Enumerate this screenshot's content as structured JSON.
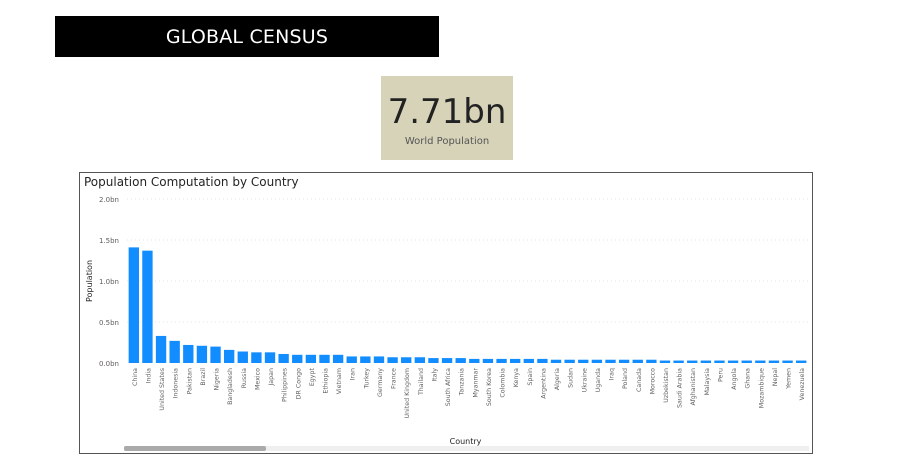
{
  "header": {
    "title": "GLOBAL CENSUS"
  },
  "kpi": {
    "value": "7.71bn",
    "label": "World Population"
  },
  "chart_data": {
    "type": "bar",
    "title": "Population Computation by Country",
    "xlabel": "Country",
    "ylabel": "Population",
    "ylim": [
      0,
      2.0
    ],
    "yticks": [
      "0.0bn",
      "0.5bn",
      "1.0bn",
      "1.5bn",
      "2.0bn"
    ],
    "grid": true,
    "bar_color": "#118dff",
    "categories": [
      "China",
      "India",
      "United States",
      "Indonesia",
      "Pakistan",
      "Brazil",
      "Nigeria",
      "Bangladesh",
      "Russia",
      "Mexico",
      "Japan",
      "Philippines",
      "DR Congo",
      "Egypt",
      "Ethiopia",
      "Vietnam",
      "Iran",
      "Turkey",
      "Germany",
      "France",
      "United Kingdom",
      "Thailand",
      "Italy",
      "South Africa",
      "Tanzania",
      "Myanmar",
      "South Korea",
      "Colombia",
      "Kenya",
      "Spain",
      "Argentina",
      "Algeria",
      "Sudan",
      "Ukraine",
      "Uganda",
      "Iraq",
      "Poland",
      "Canada",
      "Morocco",
      "Uzbekistan",
      "Saudi Arabia",
      "Afghanistan",
      "Malaysia",
      "Peru",
      "Angola",
      "Ghana",
      "Mozambique",
      "Nepal",
      "Yemen",
      "Venezuela"
    ],
    "values": [
      1.41,
      1.37,
      0.33,
      0.27,
      0.22,
      0.21,
      0.2,
      0.16,
      0.14,
      0.13,
      0.13,
      0.11,
      0.1,
      0.1,
      0.1,
      0.1,
      0.08,
      0.08,
      0.08,
      0.07,
      0.07,
      0.07,
      0.06,
      0.06,
      0.06,
      0.05,
      0.05,
      0.05,
      0.05,
      0.05,
      0.05,
      0.04,
      0.04,
      0.04,
      0.04,
      0.04,
      0.04,
      0.04,
      0.04,
      0.03,
      0.03,
      0.03,
      0.03,
      0.03,
      0.03,
      0.03,
      0.03,
      0.03,
      0.03,
      0.03
    ]
  }
}
